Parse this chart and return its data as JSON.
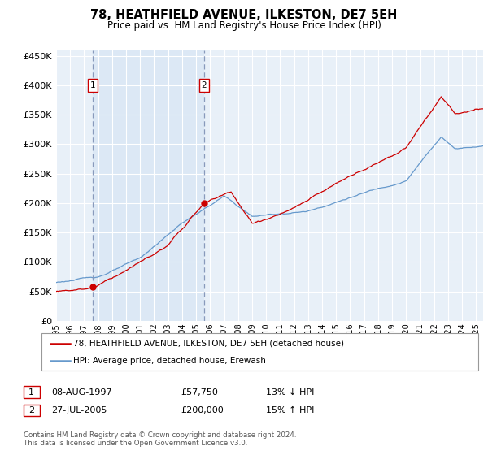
{
  "title": "78, HEATHFIELD AVENUE, ILKESTON, DE7 5EH",
  "subtitle": "Price paid vs. HM Land Registry's House Price Index (HPI)",
  "legend_line1": "78, HEATHFIELD AVENUE, ILKESTON, DE7 5EH (detached house)",
  "legend_line2": "HPI: Average price, detached house, Erewash",
  "annotation1": {
    "label": "1",
    "date": "08-AUG-1997",
    "price": "£57,750",
    "note": "13% ↓ HPI",
    "x_year": 1997.6,
    "y_val": 57750
  },
  "annotation2": {
    "label": "2",
    "date": "27-JUL-2005",
    "price": "£200,000",
    "note": "15% ↑ HPI",
    "x_year": 2005.55,
    "y_val": 200000
  },
  "footer": "Contains HM Land Registry data © Crown copyright and database right 2024.\nThis data is licensed under the Open Government Licence v3.0.",
  "ylim": [
    0,
    460000
  ],
  "xlim": [
    1995.0,
    2025.5
  ],
  "red_color": "#cc0000",
  "blue_color": "#6699cc",
  "blue_fill_color": "#dce8f5",
  "bg_color": "#e8f0f8",
  "grid_color": "#ffffff",
  "vline_color": "#aaaacc"
}
